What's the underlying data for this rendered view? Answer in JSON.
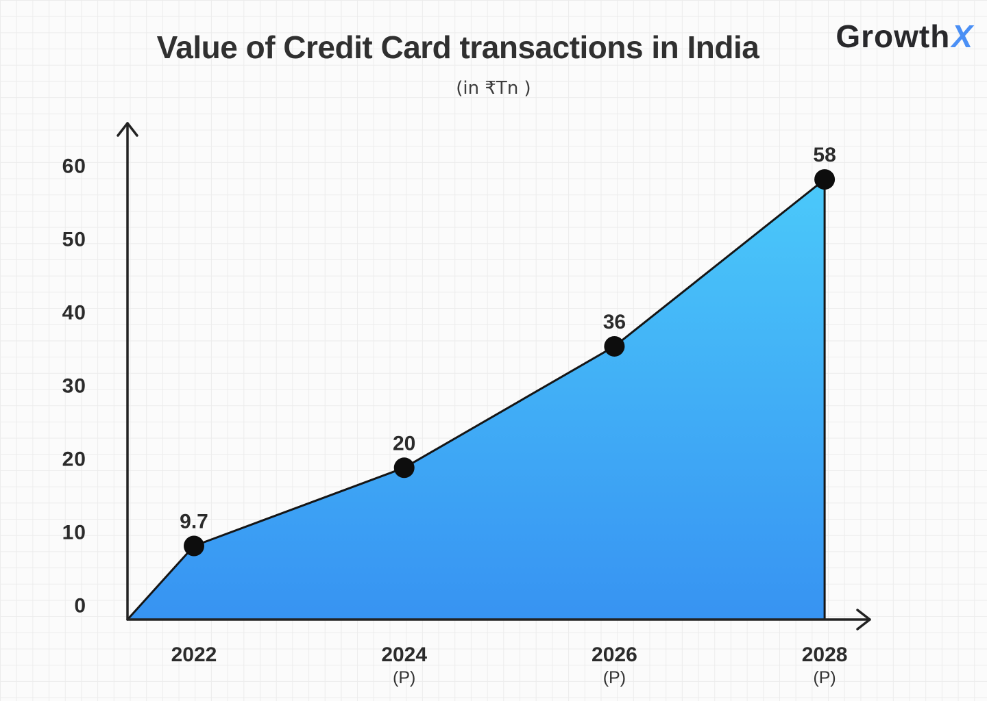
{
  "header": {
    "title": "Value of Credit Card transactions in India",
    "subtitle": "(in ₹Tn )"
  },
  "logo": {
    "wordmark": "Growth",
    "x_mark": "X"
  },
  "chart_data": {
    "type": "area",
    "title": "Value of Credit Card transactions in India",
    "units_label": "(in ₹Tn )",
    "categories": [
      "2022",
      "2024 (P)",
      "2026 (P)",
      "2028 (P)"
    ],
    "x_ticks": [
      {
        "year": "2022",
        "note": ""
      },
      {
        "year": "2024",
        "note": "(P)"
      },
      {
        "year": "2026",
        "note": "(P)"
      },
      {
        "year": "2028",
        "note": "(P)"
      }
    ],
    "values": [
      9.7,
      20,
      36,
      58
    ],
    "point_labels": [
      "9.7",
      "20",
      "36",
      "58"
    ],
    "y_ticks": [
      0,
      10,
      20,
      30,
      40,
      50,
      60
    ],
    "ylim": [
      0,
      65
    ],
    "legend": "none",
    "grid": "graph-paper-background",
    "colors": {
      "area_gradient_top": "#4bc9fa",
      "area_gradient_bottom": "#3793f2",
      "line": "#151515",
      "dot": "#0d0d0d",
      "axis": "#222222",
      "label_text": "#2b2b2b",
      "logo_x_blue": "#4a8ff5"
    }
  }
}
